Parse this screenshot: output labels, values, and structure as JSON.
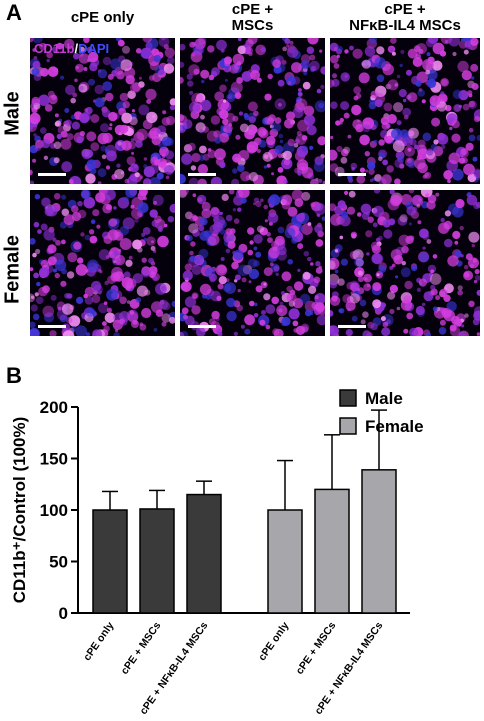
{
  "panel_a": {
    "letter": "A",
    "columns": [
      "cPE only",
      "cPE +\nMSCs",
      "cPE +\nNFκB-IL4 MSCs"
    ],
    "rows": [
      "Male",
      "Female"
    ],
    "stain": {
      "marker": "CD11b",
      "separator": "/",
      "nuclear": "DAPI",
      "marker_color": "#c43bd6",
      "nuclear_color": "#3f4cff"
    }
  },
  "panel_b": {
    "letter": "B",
    "chart_data": {
      "type": "bar",
      "ylabel": "CD11b⁺/Control (100%)",
      "ylim": [
        0,
        200
      ],
      "yticks": [
        0,
        50,
        100,
        150,
        200
      ],
      "legend_position": "top-right",
      "groups": [
        {
          "name": "Male",
          "color": "#3a3a3a",
          "categories": [
            "cPE only",
            "cPE + MSCs",
            "cPE + NFκB-IL4 MSCs"
          ],
          "values": [
            100,
            101,
            115
          ],
          "errors": [
            18,
            18,
            13
          ]
        },
        {
          "name": "Female",
          "color": "#a7a7ab",
          "categories": [
            "cPE only",
            "cPE + MSCs",
            "cPE + NFκB-IL4 MSCs"
          ],
          "values": [
            100,
            120,
            139
          ],
          "errors": [
            48,
            53,
            58
          ]
        }
      ]
    }
  }
}
